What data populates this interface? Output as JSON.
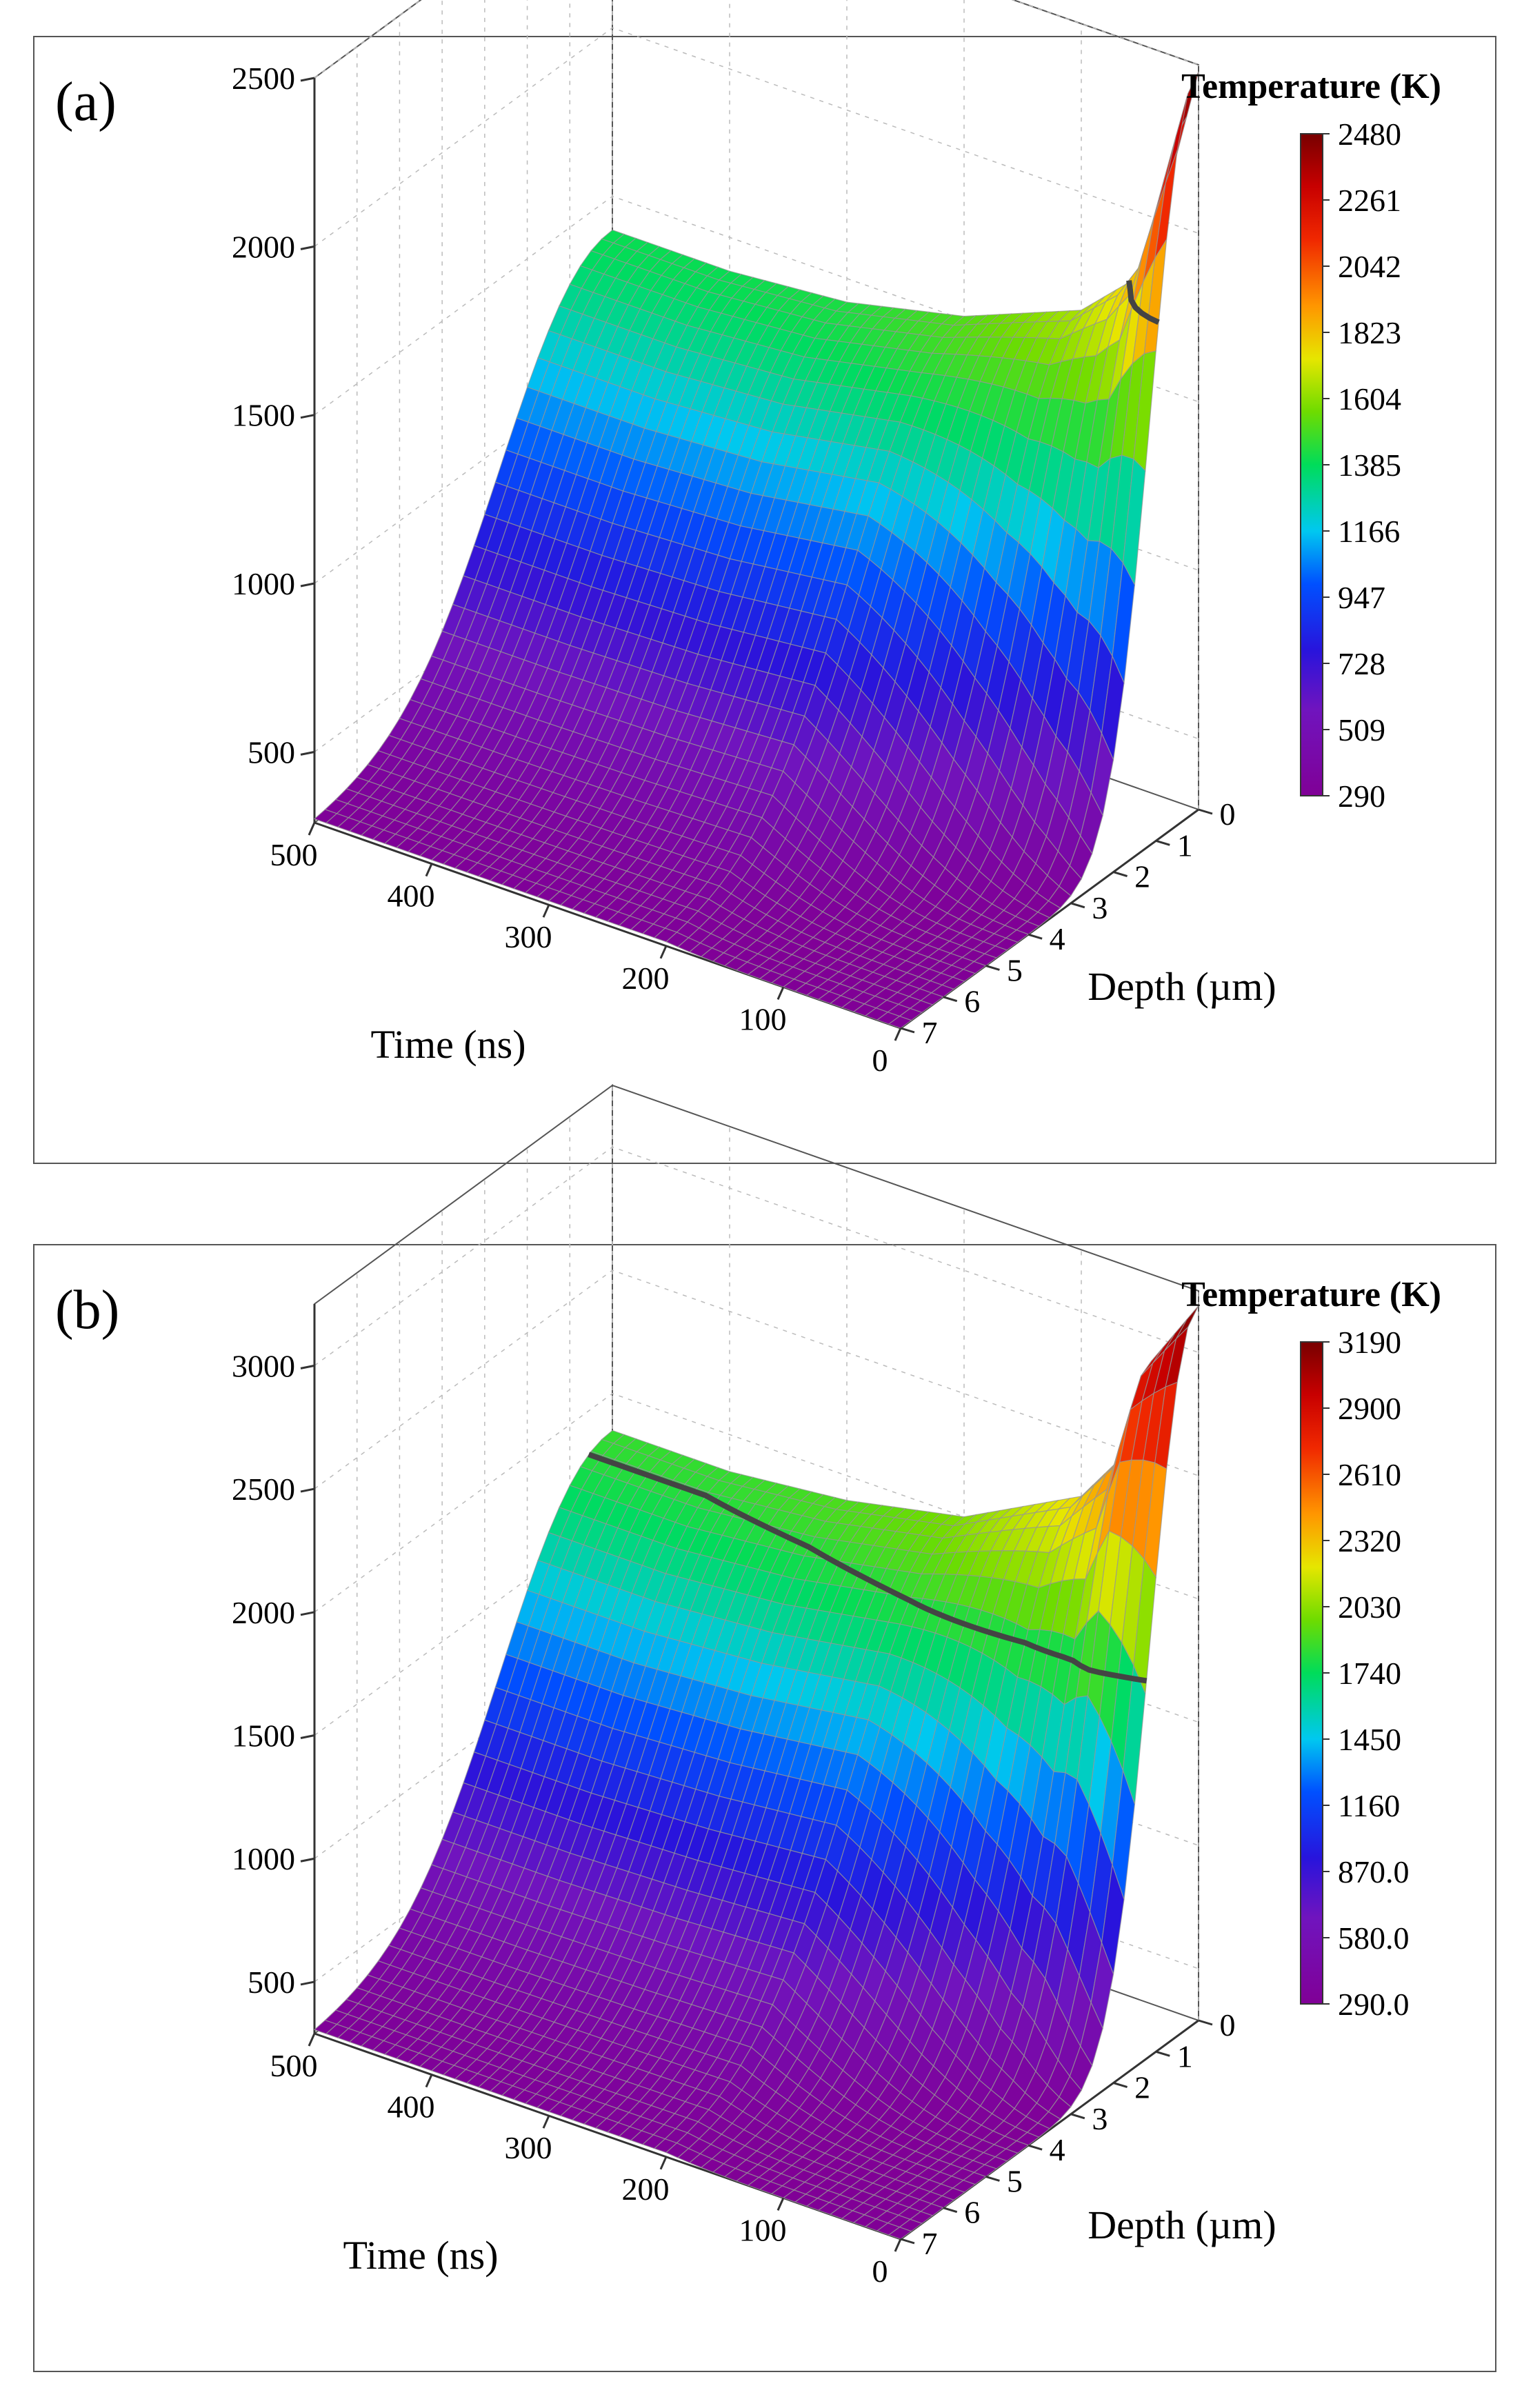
{
  "chart_data": [
    {
      "type": "surface3d",
      "panel_label": "(a)",
      "title": "",
      "xlabel": "Time (ns)",
      "ylabel": "Depth (µm)",
      "zlabel": "Temperature (K)",
      "x_ticks": [
        "500",
        "400",
        "300",
        "200",
        "100",
        "0"
      ],
      "y_ticks": [
        "0",
        "1",
        "2",
        "3",
        "4",
        "5",
        "6",
        "7"
      ],
      "z_ticks": [
        "500",
        "1000",
        "1500",
        "2000",
        "2500"
      ],
      "xlim": [
        0,
        500
      ],
      "ylim": [
        0,
        7
      ],
      "zlim": [
        290,
        2500
      ],
      "colorbar": {
        "title": "Temperature (K)",
        "labels": [
          "2480",
          "2261",
          "2042",
          "1823",
          "1604",
          "1385",
          "1166",
          "947",
          "728",
          "509",
          "290"
        ],
        "min": 290,
        "max": 2480
      },
      "surface": {
        "time_ns": [
          0,
          40,
          60,
          100,
          200,
          300,
          400,
          500
        ],
        "peak_temperature_K": [
          2480,
          1900,
          1780,
          1650,
          1510,
          1430,
          1400,
          1400
        ],
        "surface_temperature_at_depth_7um_K": 290
      },
      "melting_contour_K": 1823
    },
    {
      "type": "surface3d",
      "panel_label": "(b)",
      "title": "",
      "xlabel": "Time (ns)",
      "ylabel": "Depth (µm)",
      "zlabel": "Temperature (K)",
      "x_ticks": [
        "500",
        "400",
        "300",
        "200",
        "100",
        "0"
      ],
      "y_ticks": [
        "0",
        "1",
        "2",
        "3",
        "4",
        "5",
        "6",
        "7"
      ],
      "z_ticks": [
        "500",
        "1000",
        "1500",
        "2000",
        "2500",
        "3000"
      ],
      "xlim": [
        0,
        500
      ],
      "ylim": [
        0,
        7
      ],
      "zlim": [
        290,
        3250
      ],
      "colorbar": {
        "title": "Temperature (K)",
        "labels": [
          "3190",
          "2900",
          "2610",
          "2320",
          "2030",
          "1740",
          "1450",
          "1160",
          "870.0",
          "580.0",
          "290.0"
        ],
        "min": 290,
        "max": 3190
      },
      "surface": {
        "time_ns": [
          0,
          40,
          60,
          100,
          200,
          300,
          400,
          500
        ],
        "peak_temperature_K": [
          3190,
          2900,
          2500,
          2250,
          2000,
          1900,
          1850,
          1850
        ],
        "surface_temperature_at_depth_7um_K": 290
      },
      "melting_contour_K": 1823
    }
  ]
}
